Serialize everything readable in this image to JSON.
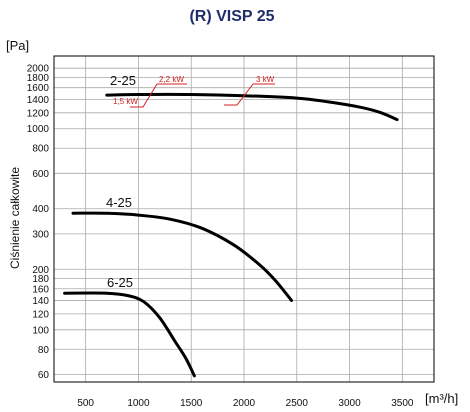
{
  "chart_data": {
    "type": "line",
    "title": "(R) VISP 25",
    "xlabel": "[m³/h]",
    "ylabel": "Ciśnienie całkowite",
    "y_unit_label": "[Pa]",
    "x_scale": "linear",
    "y_scale": "log",
    "xlim": [
      200,
      3800
    ],
    "ylim": [
      55,
      2300
    ],
    "x_ticks": [
      500,
      1000,
      1500,
      2000,
      2500,
      3000,
      3500
    ],
    "x_tick_labels": [
      "500",
      "1000",
      "1500",
      "2000",
      "2500",
      "3000",
      "3500"
    ],
    "y_ticks": [
      2000,
      1800,
      1600,
      1400,
      1200,
      1000,
      800,
      600,
      400,
      300,
      200,
      180,
      160,
      140,
      120,
      100,
      80,
      60
    ],
    "y_tick_labels": [
      "2000",
      "1800",
      "1600",
      "1400",
      "1200",
      "1000",
      "800",
      "600",
      "400",
      "300",
      "200",
      "180",
      "160",
      "140",
      "120",
      "100",
      "80",
      "60"
    ],
    "grid": true,
    "legend": "none",
    "series": [
      {
        "name": "2-25",
        "x": [
          700,
          1000,
          1500,
          2000,
          2500,
          2800,
          3100,
          3300,
          3450
        ],
        "y": [
          1470,
          1480,
          1480,
          1460,
          1420,
          1360,
          1280,
          1200,
          1110
        ]
      },
      {
        "name": "4-25",
        "x": [
          380,
          700,
          1000,
          1300,
          1600,
          1900,
          2150,
          2300,
          2450
        ],
        "y": [
          380,
          380,
          372,
          355,
          320,
          265,
          210,
          175,
          140
        ]
      },
      {
        "name": "6-25",
        "x": [
          300,
          700,
          900,
          1050,
          1200,
          1350,
          1450,
          1530
        ],
        "y": [
          152,
          152,
          148,
          138,
          115,
          87,
          72,
          59
        ]
      }
    ],
    "annotations": [
      {
        "text": "2,2 kW",
        "color": "#d42020"
      },
      {
        "text": "3 kW",
        "color": "#d42020"
      },
      {
        "text": "1,5 kW",
        "color": "#d42020"
      }
    ]
  }
}
